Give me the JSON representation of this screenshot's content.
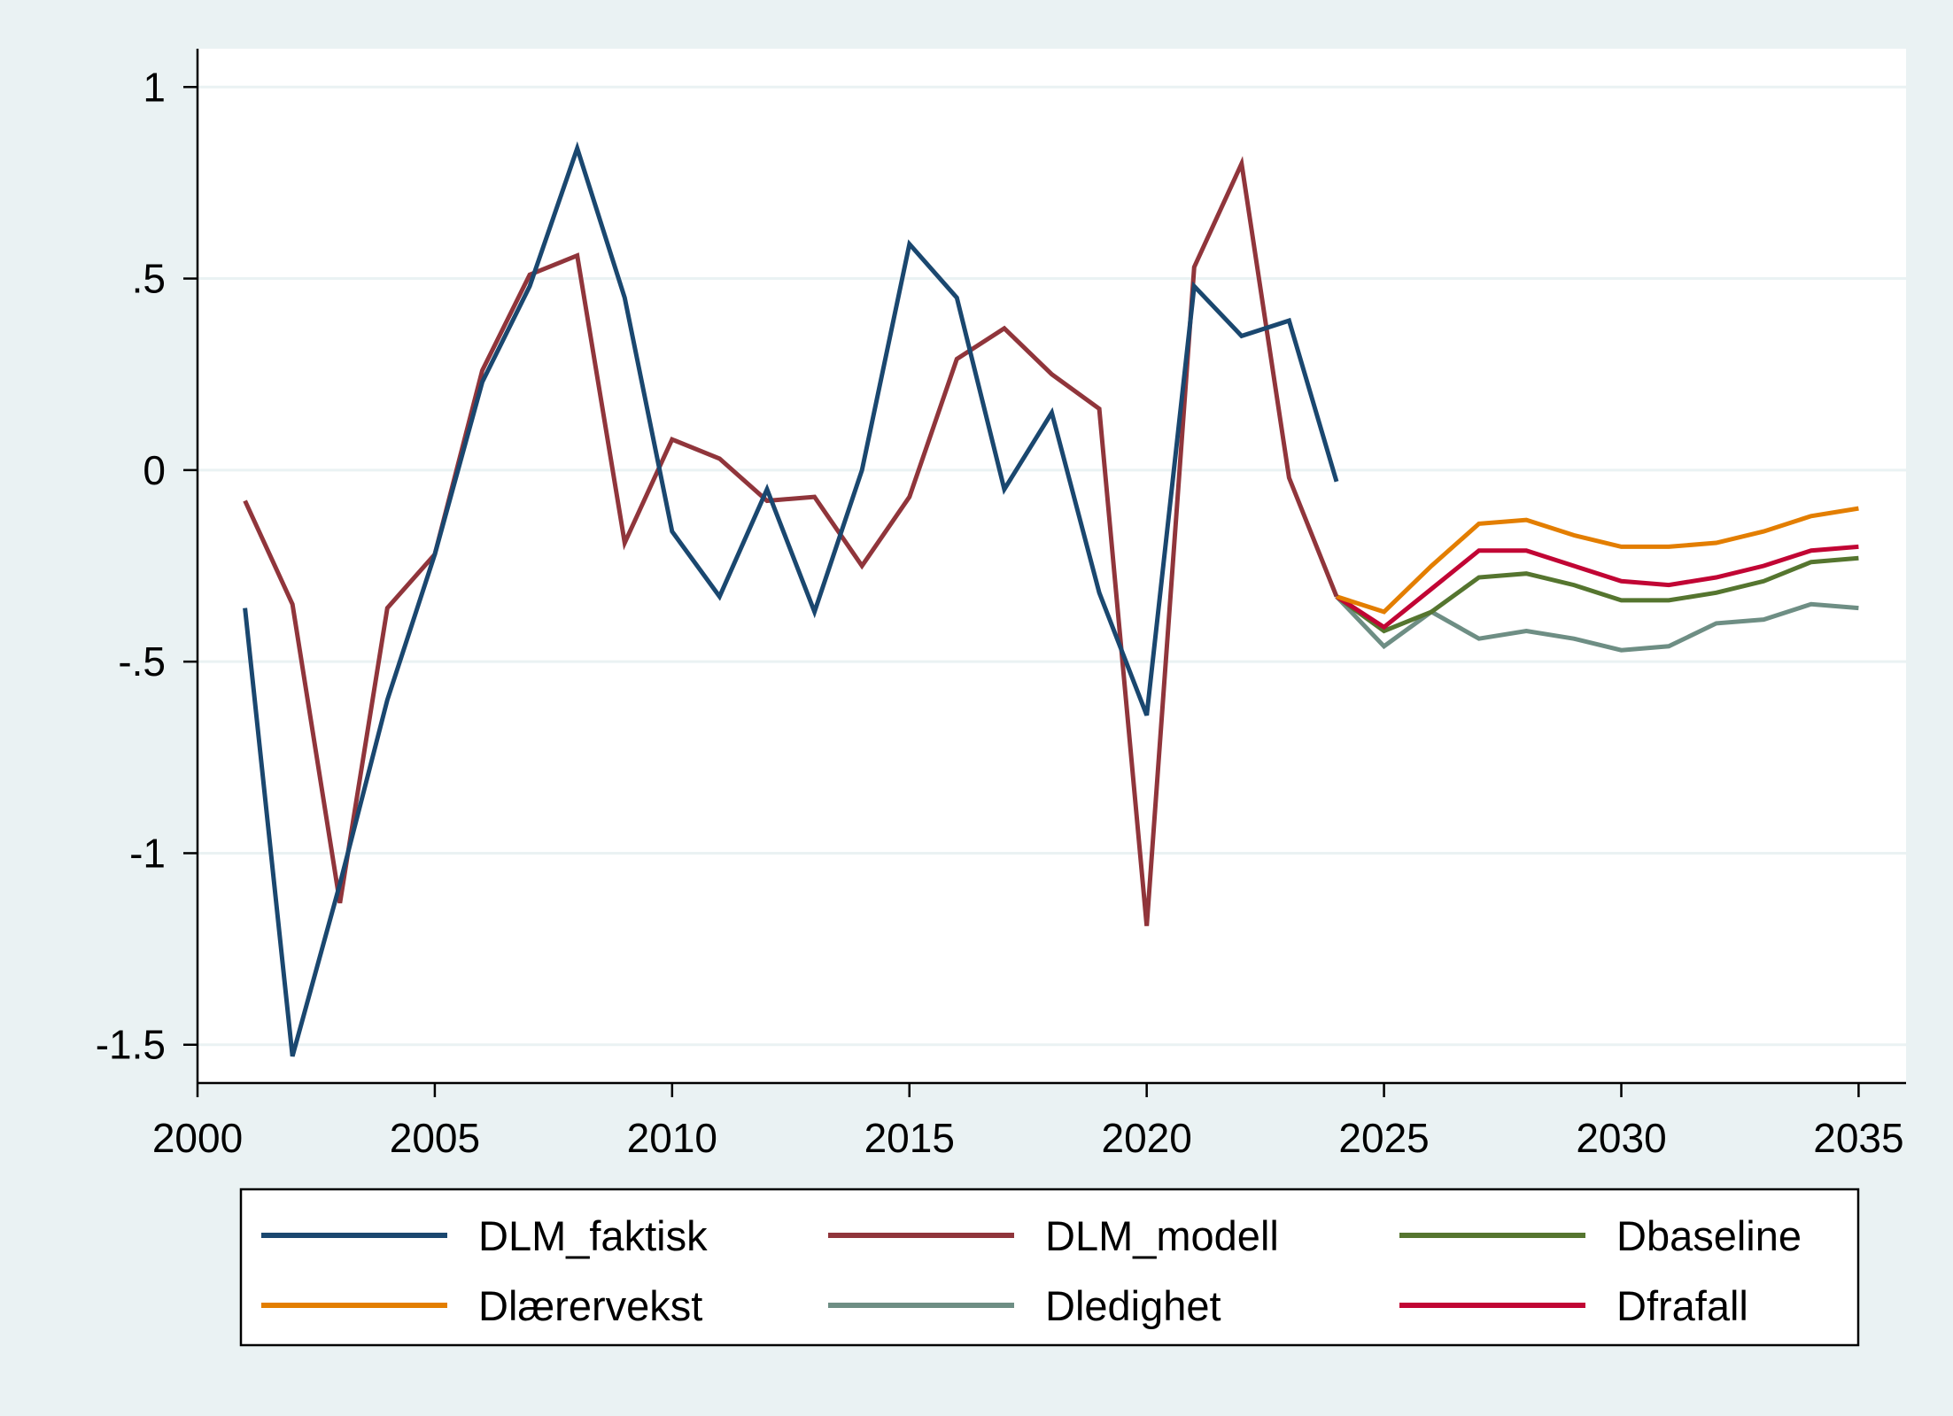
{
  "chart_data": {
    "type": "line",
    "title": "",
    "xlabel": "",
    "ylabel": "",
    "xlim": [
      2000,
      2036
    ],
    "ylim": [
      -1.6,
      1.1
    ],
    "grid": true,
    "xticks": [
      {
        "value": 2000,
        "label": "2000"
      },
      {
        "value": 2005,
        "label": "2005"
      },
      {
        "value": 2010,
        "label": "2010"
      },
      {
        "value": 2015,
        "label": "2015"
      },
      {
        "value": 2020,
        "label": "2020"
      },
      {
        "value": 2025,
        "label": "2025"
      },
      {
        "value": 2030,
        "label": "2030"
      },
      {
        "value": 2035,
        "label": "2035"
      }
    ],
    "yticks": [
      {
        "value": 1,
        "label": "1"
      },
      {
        "value": 0.5,
        "label": ".5"
      },
      {
        "value": 0,
        "label": "0"
      },
      {
        "value": -0.5,
        "label": "-.5"
      },
      {
        "value": -1,
        "label": "-1"
      },
      {
        "value": -1.5,
        "label": "-1.5"
      }
    ],
    "legend_position": "bottom",
    "series": [
      {
        "name": "DLM_faktisk",
        "color": "#1a476f",
        "x": [
          2001,
          2002,
          2003,
          2004,
          2005,
          2006,
          2007,
          2008,
          2009,
          2010,
          2011,
          2012,
          2013,
          2014,
          2015,
          2016,
          2017,
          2018,
          2019,
          2020,
          2021,
          2022,
          2023,
          2024
        ],
        "values": [
          -0.36,
          -1.53,
          -1.08,
          -0.6,
          -0.22,
          0.23,
          0.48,
          0.84,
          0.45,
          -0.16,
          -0.33,
          -0.05,
          -0.37,
          0.0,
          0.59,
          0.45,
          -0.05,
          0.15,
          -0.32,
          -0.64,
          0.48,
          0.35,
          0.39,
          -0.03
        ]
      },
      {
        "name": "DLM_modell",
        "color": "#90353b",
        "x": [
          2001,
          2002,
          2003,
          2004,
          2005,
          2006,
          2007,
          2008,
          2009,
          2010,
          2011,
          2012,
          2013,
          2014,
          2015,
          2016,
          2017,
          2018,
          2019,
          2020,
          2021,
          2022,
          2023,
          2024
        ],
        "values": [
          -0.08,
          -0.35,
          -1.13,
          -0.36,
          -0.22,
          0.26,
          0.51,
          0.56,
          -0.19,
          0.08,
          0.03,
          -0.08,
          -0.07,
          -0.25,
          -0.07,
          0.29,
          0.37,
          0.25,
          0.16,
          -1.19,
          0.53,
          0.8,
          -0.02,
          -0.33
        ]
      },
      {
        "name": "Dbaseline",
        "color": "#55752f",
        "x": [
          2024,
          2025,
          2026,
          2027,
          2028,
          2029,
          2030,
          2031,
          2032,
          2033,
          2034,
          2035
        ],
        "values": [
          -0.33,
          -0.42,
          -0.37,
          -0.28,
          -0.27,
          -0.3,
          -0.34,
          -0.34,
          -0.32,
          -0.29,
          -0.24,
          -0.23
        ]
      },
      {
        "name": "Dlærervekst",
        "color": "#e37e00",
        "x": [
          2024,
          2025,
          2026,
          2027,
          2028,
          2029,
          2030,
          2031,
          2032,
          2033,
          2034,
          2035
        ],
        "values": [
          -0.33,
          -0.37,
          -0.25,
          -0.14,
          -0.13,
          -0.17,
          -0.2,
          -0.2,
          -0.19,
          -0.16,
          -0.12,
          -0.1
        ]
      },
      {
        "name": "Dledighet",
        "color": "#6e8e84",
        "x": [
          2024,
          2025,
          2026,
          2027,
          2028,
          2029,
          2030,
          2031,
          2032,
          2033,
          2034,
          2035
        ],
        "values": [
          -0.33,
          -0.46,
          -0.37,
          -0.44,
          -0.42,
          -0.44,
          -0.47,
          -0.46,
          -0.4,
          -0.39,
          -0.35,
          -0.36
        ]
      },
      {
        "name": "Dfrafall",
        "color": "#c10534",
        "x": [
          2024,
          2025,
          2026,
          2027,
          2028,
          2029,
          2030,
          2031,
          2032,
          2033,
          2034,
          2035
        ],
        "values": [
          -0.33,
          -0.41,
          -0.31,
          -0.21,
          -0.21,
          -0.25,
          -0.29,
          -0.3,
          -0.28,
          -0.25,
          -0.21,
          -0.2
        ]
      }
    ]
  }
}
